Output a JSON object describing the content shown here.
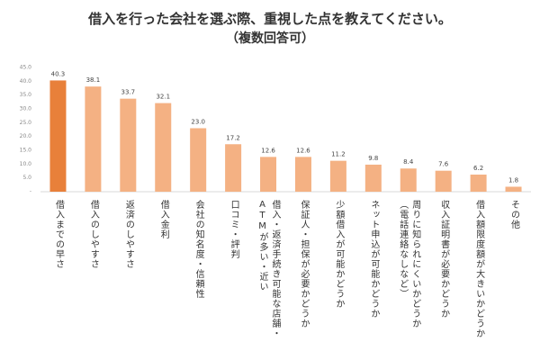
{
  "chart_data": {
    "type": "bar",
    "title": "借入を行った会社を選ぶ際、重視した点を教えてください。",
    "subtitle": "（複数回答可）",
    "categories": [
      "借入までの早さ",
      "借入のしやすさ",
      "返済のしやすさ",
      "借入金利",
      "会社の知名度・信頼性",
      "口コミ・評判",
      "借入・返済手続き可能な店舗・\nATMが多い・近い",
      "保証人・担保が必要かどうか",
      "少額借入が可能かどうか",
      "ネット申込が可能かどうか",
      "周りに知られにくいかどうか\n（電話連絡なしなど）",
      "収入証明書が必要かどうか",
      "借入額限度額が大きいかどうか",
      "その他"
    ],
    "values": [
      40.3,
      38.1,
      33.7,
      32.1,
      23.0,
      17.2,
      12.6,
      12.6,
      11.2,
      9.8,
      8.4,
      7.6,
      6.2,
      1.8
    ],
    "value_labels": [
      "40.3",
      "38.1",
      "33.7",
      "32.1",
      "23.0",
      "17.2",
      "12.6",
      "12.6",
      "11.2",
      "9.8",
      "8.4",
      "7.6",
      "6.2",
      "1.8"
    ],
    "colors": [
      "#e8803a",
      "#f4b183",
      "#f4b183",
      "#f4b183",
      "#f4b183",
      "#f4b183",
      "#f4b183",
      "#f4b183",
      "#f4b183",
      "#f4b183",
      "#f4b183",
      "#f4b183",
      "#f4b183",
      "#f4b183"
    ],
    "ylim": [
      0,
      45
    ],
    "yticks": [
      {
        "value": 0,
        "label": "-"
      },
      {
        "value": 5,
        "label": "5.0"
      },
      {
        "value": 10,
        "label": "10.0"
      },
      {
        "value": 15,
        "label": "15.0"
      },
      {
        "value": 20,
        "label": "20.0"
      },
      {
        "value": 25,
        "label": "25.0"
      },
      {
        "value": 30,
        "label": "30.0"
      },
      {
        "value": 35,
        "label": "35.0"
      },
      {
        "value": 40,
        "label": "40.0"
      },
      {
        "value": 45,
        "label": "45.0"
      }
    ],
    "grid": false
  }
}
